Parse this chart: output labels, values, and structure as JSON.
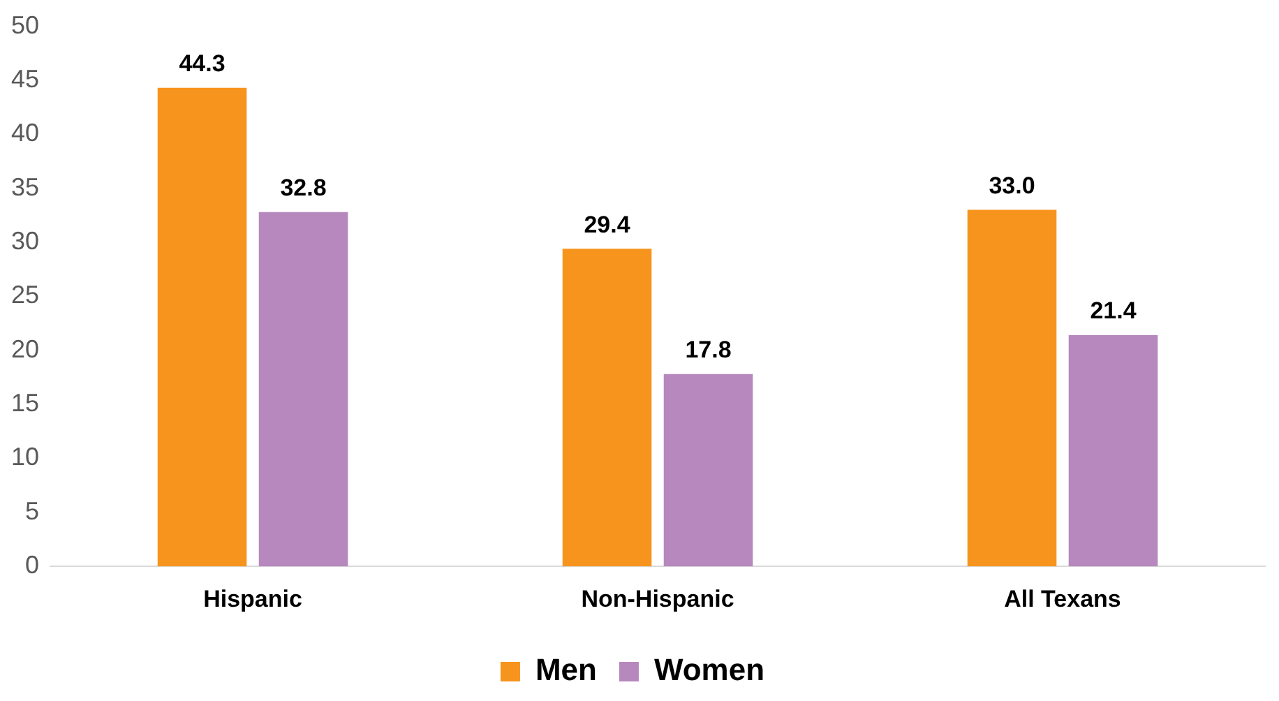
{
  "chart_data": {
    "type": "bar",
    "categories": [
      "Hispanic",
      "Non-Hispanic",
      "All Texans"
    ],
    "series": [
      {
        "name": "Men",
        "color": "#f7941d",
        "values": [
          44.3,
          29.4,
          33.0
        ],
        "value_labels": [
          "44.3",
          "29.4",
          "33.0"
        ]
      },
      {
        "name": "Women",
        "color": "#b788be",
        "values": [
          32.8,
          17.8,
          21.4
        ],
        "value_labels": [
          "32.8",
          "17.8",
          "21.4"
        ]
      }
    ],
    "ylim": [
      0,
      50
    ],
    "yticks": [
      0,
      5,
      10,
      15,
      20,
      25,
      30,
      35,
      40,
      45,
      50
    ],
    "grid": false,
    "legend": "bottom"
  }
}
